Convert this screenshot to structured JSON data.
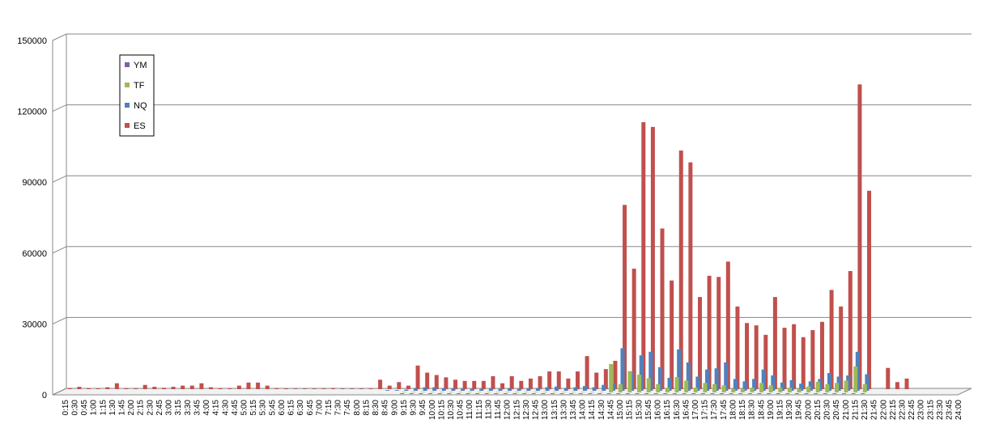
{
  "chart_data": {
    "type": "bar",
    "categories": [
      "0:15",
      "0:30",
      "0:45",
      "1:00",
      "1:15",
      "1:30",
      "1:45",
      "2:00",
      "2:15",
      "2:30",
      "2:45",
      "3:00",
      "3:15",
      "3:30",
      "3:45",
      "4:00",
      "4:15",
      "4:30",
      "4:45",
      "5:00",
      "5:15",
      "5:30",
      "5:45",
      "6:00",
      "6:15",
      "6:30",
      "6:45",
      "7:00",
      "7:15",
      "7:30",
      "7:45",
      "8:00",
      "8:15",
      "8:30",
      "8:45",
      "9:00",
      "9:15",
      "9:30",
      "9:45",
      "10:00",
      "10:15",
      "10:30",
      "10:45",
      "11:00",
      "11:15",
      "11:30",
      "11:45",
      "12:00",
      "12:15",
      "12:30",
      "12:45",
      "13:00",
      "13:15",
      "13:30",
      "13:45",
      "14:00",
      "14:15",
      "14:30",
      "14:45",
      "15:00",
      "15:15",
      "15:30",
      "15:45",
      "16:00",
      "16:15",
      "16:30",
      "16:45",
      "17:00",
      "17:15",
      "17:30",
      "17:45",
      "18:00",
      "18:15",
      "18:30",
      "18:45",
      "19:00",
      "19:15",
      "19:30",
      "19:45",
      "20:00",
      "20:15",
      "20:30",
      "20:45",
      "21:00",
      "21:15",
      "21:30",
      "21:45",
      "22:00",
      "22:15",
      "22:30",
      "22:45",
      "23:00",
      "23:15",
      "23:30",
      "23:45",
      "24:00"
    ],
    "series": [
      {
        "name": "YM",
        "color": "#7e5fa8",
        "values": [
          0,
          0,
          0,
          0,
          0,
          0,
          0,
          0,
          0,
          0,
          0,
          0,
          0,
          0,
          0,
          0,
          0,
          0,
          0,
          0,
          0,
          0,
          0,
          0,
          0,
          0,
          0,
          0,
          0,
          0,
          0,
          0,
          0,
          0,
          0,
          0,
          300,
          300,
          300,
          300,
          300,
          300,
          300,
          300,
          300,
          300,
          300,
          300,
          300,
          300,
          300,
          300,
          300,
          300,
          300,
          300,
          300,
          300,
          300,
          300,
          300,
          300,
          300,
          300,
          300,
          300,
          300,
          300,
          300,
          300,
          300,
          300,
          300,
          300,
          300,
          300,
          300,
          300,
          300,
          300,
          300,
          300,
          300,
          300,
          300,
          300,
          0,
          0,
          0,
          0,
          0,
          0,
          0,
          0,
          0,
          0
        ]
      },
      {
        "name": "TF",
        "color": "#9bbb59",
        "values": [
          0,
          0,
          0,
          0,
          0,
          0,
          0,
          0,
          0,
          0,
          0,
          0,
          0,
          0,
          0,
          0,
          0,
          0,
          0,
          0,
          0,
          0,
          0,
          0,
          0,
          0,
          0,
          0,
          0,
          0,
          0,
          0,
          0,
          0,
          0,
          0,
          200,
          200,
          200,
          200,
          200,
          200,
          200,
          200,
          200,
          200,
          200,
          200,
          200,
          200,
          200,
          200,
          200,
          200,
          200,
          200,
          200,
          200,
          12000,
          3500,
          9000,
          7500,
          6000,
          3500,
          2000,
          6500,
          5000,
          2000,
          4000,
          3500,
          3000,
          1500,
          1500,
          2000,
          4000,
          3000,
          2000,
          2000,
          1500,
          2500,
          4500,
          3500,
          4000,
          5000,
          11000,
          3500,
          0,
          0,
          0,
          0,
          0,
          0,
          0,
          0,
          0,
          0
        ]
      },
      {
        "name": "NQ",
        "color": "#4f81bd",
        "values": [
          0,
          0,
          0,
          0,
          0,
          0,
          0,
          0,
          0,
          0,
          0,
          0,
          0,
          0,
          0,
          0,
          0,
          0,
          0,
          0,
          0,
          0,
          0,
          0,
          0,
          0,
          0,
          0,
          0,
          0,
          0,
          0,
          0,
          0,
          300,
          300,
          500,
          1000,
          1500,
          1500,
          1200,
          1000,
          800,
          800,
          800,
          1000,
          800,
          1000,
          800,
          1000,
          1200,
          1500,
          1800,
          1200,
          1500,
          2000,
          1500,
          2500,
          3000,
          18000,
          8000,
          15000,
          16500,
          10000,
          5500,
          17500,
          12000,
          6000,
          9000,
          9500,
          12000,
          5000,
          4000,
          5000,
          9000,
          6500,
          3500,
          4500,
          3000,
          4000,
          5000,
          7500,
          6000,
          6500,
          16500,
          7000,
          0,
          0,
          0,
          0,
          0,
          0,
          0,
          0,
          0,
          0
        ]
      },
      {
        "name": "ES",
        "color": "#c0504d",
        "values": [
          500,
          1000,
          500,
          300,
          800,
          2500,
          400,
          300,
          1800,
          1000,
          600,
          1000,
          1500,
          1500,
          2500,
          800,
          400,
          300,
          1500,
          2800,
          2800,
          1500,
          400,
          300,
          200,
          200,
          200,
          200,
          500,
          200,
          200,
          200,
          300,
          4000,
          1500,
          3000,
          1500,
          10000,
          7000,
          6000,
          5000,
          4000,
          3500,
          3500,
          3500,
          5500,
          2500,
          5500,
          3500,
          4500,
          5500,
          7500,
          7500,
          4500,
          7500,
          14000,
          7000,
          8500,
          12000,
          78000,
          51000,
          113000,
          111000,
          68000,
          46000,
          101000,
          96000,
          39000,
          48000,
          47500,
          54000,
          35000,
          28000,
          27000,
          23000,
          39000,
          26000,
          27500,
          22000,
          25000,
          28500,
          42000,
          35000,
          50000,
          129000,
          84000,
          0,
          9000,
          3000,
          4500,
          0,
          0,
          0,
          0,
          0,
          0
        ]
      }
    ],
    "ylim": [
      0,
      150000
    ],
    "yticks": [
      0,
      30000,
      60000,
      90000,
      120000,
      150000
    ],
    "grid": true
  }
}
